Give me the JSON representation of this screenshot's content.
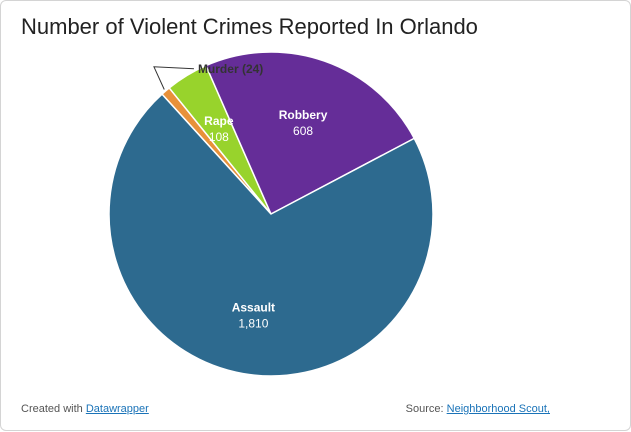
{
  "title": "Number of Violent Crimes Reported In Orlando",
  "footer": {
    "created_with_prefix": "Created with",
    "created_with_link": "Datawrapper",
    "source_prefix": "Source:",
    "source_link": "Neighborhood Scout,"
  },
  "chart_data": {
    "type": "pie",
    "title": "Number of Violent Crimes Reported In Orlando",
    "slices": [
      {
        "name": "Murder",
        "value": 24,
        "value_label": "24",
        "color": "#e8913a",
        "label_outside": true
      },
      {
        "name": "Rape",
        "value": 108,
        "value_label": "108",
        "color": "#98d32c",
        "label_outside": false
      },
      {
        "name": "Robbery",
        "value": 608,
        "value_label": "608",
        "color": "#652d98",
        "label_outside": false
      },
      {
        "name": "Assault",
        "value": 1810,
        "value_label": "1,810",
        "color": "#2d6a8f",
        "label_outside": false
      }
    ]
  }
}
